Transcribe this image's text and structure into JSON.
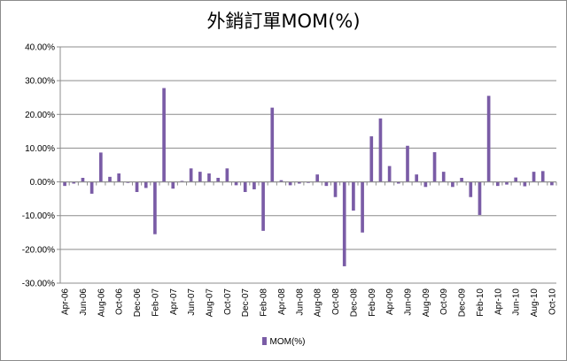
{
  "chart_data": {
    "type": "bar",
    "title": "外銷訂單MOM(%)",
    "xlabel": "",
    "ylabel": "",
    "ylim": [
      -30,
      40
    ],
    "yticks": [
      "40.00%",
      "30.00%",
      "20.00%",
      "10.00%",
      "0.00%",
      "-10.00%",
      "-20.00%",
      "-30.00%"
    ],
    "tick_labels": [
      "Apr-06",
      "Jun-06",
      "Aug-06",
      "Oct-06",
      "Dec-06",
      "Feb-07",
      "Apr-07",
      "Jun-07",
      "Aug-07",
      "Oct-07",
      "Dec-07",
      "Feb-08",
      "Apr-08",
      "Jun-08",
      "Aug-08",
      "Oct-08",
      "Dec-08",
      "Feb-09",
      "Apr-09",
      "Jun-09",
      "Aug-09",
      "Oct-09",
      "Dec-09",
      "Feb-10",
      "Apr-10",
      "Jun-10",
      "Aug-10",
      "Oct-10"
    ],
    "categories": [
      "Apr-06",
      "May-06",
      "Jun-06",
      "Jul-06",
      "Aug-06",
      "Sep-06",
      "Oct-06",
      "Nov-06",
      "Dec-06",
      "Jan-07",
      "Feb-07",
      "Mar-07",
      "Apr-07",
      "May-07",
      "Jun-07",
      "Jul-07",
      "Aug-07",
      "Sep-07",
      "Oct-07",
      "Nov-07",
      "Dec-07",
      "Jan-08",
      "Feb-08",
      "Mar-08",
      "Apr-08",
      "May-08",
      "Jun-08",
      "Jul-08",
      "Aug-08",
      "Sep-08",
      "Oct-08",
      "Nov-08",
      "Dec-08",
      "Jan-09",
      "Feb-09",
      "Mar-09",
      "Apr-09",
      "May-09",
      "Jun-09",
      "Jul-09",
      "Aug-09",
      "Sep-09",
      "Oct-09",
      "Nov-09",
      "Dec-09",
      "Jan-10",
      "Feb-10",
      "Mar-10",
      "Apr-10",
      "May-10",
      "Jun-10",
      "Jul-10",
      "Aug-10",
      "Sep-10",
      "Oct-10"
    ],
    "series": [
      {
        "name": "MOM(%)",
        "color": "#7a5ca6",
        "values": [
          -1.2,
          -0.5,
          1.2,
          -3.5,
          8.7,
          1.5,
          2.5,
          -0.3,
          -3.0,
          -1.8,
          -15.5,
          27.8,
          -2.0,
          0.3,
          4.0,
          3.0,
          2.5,
          1.2,
          4.0,
          -1.0,
          -3.0,
          -2.2,
          -14.5,
          22.0,
          0.5,
          -1.0,
          -0.5,
          -0.3,
          2.2,
          -1.2,
          -4.5,
          -25.0,
          -8.5,
          -15.0,
          13.5,
          18.8,
          4.7,
          -0.5,
          10.7,
          2.2,
          -1.5,
          8.8,
          3.0,
          -1.5,
          1.2,
          -4.5,
          -9.8,
          25.5,
          -1.2,
          -0.8,
          1.3,
          -1.3,
          3.0,
          3.2,
          -1.0
        ]
      }
    ],
    "legend": "bottom",
    "grid": true
  }
}
